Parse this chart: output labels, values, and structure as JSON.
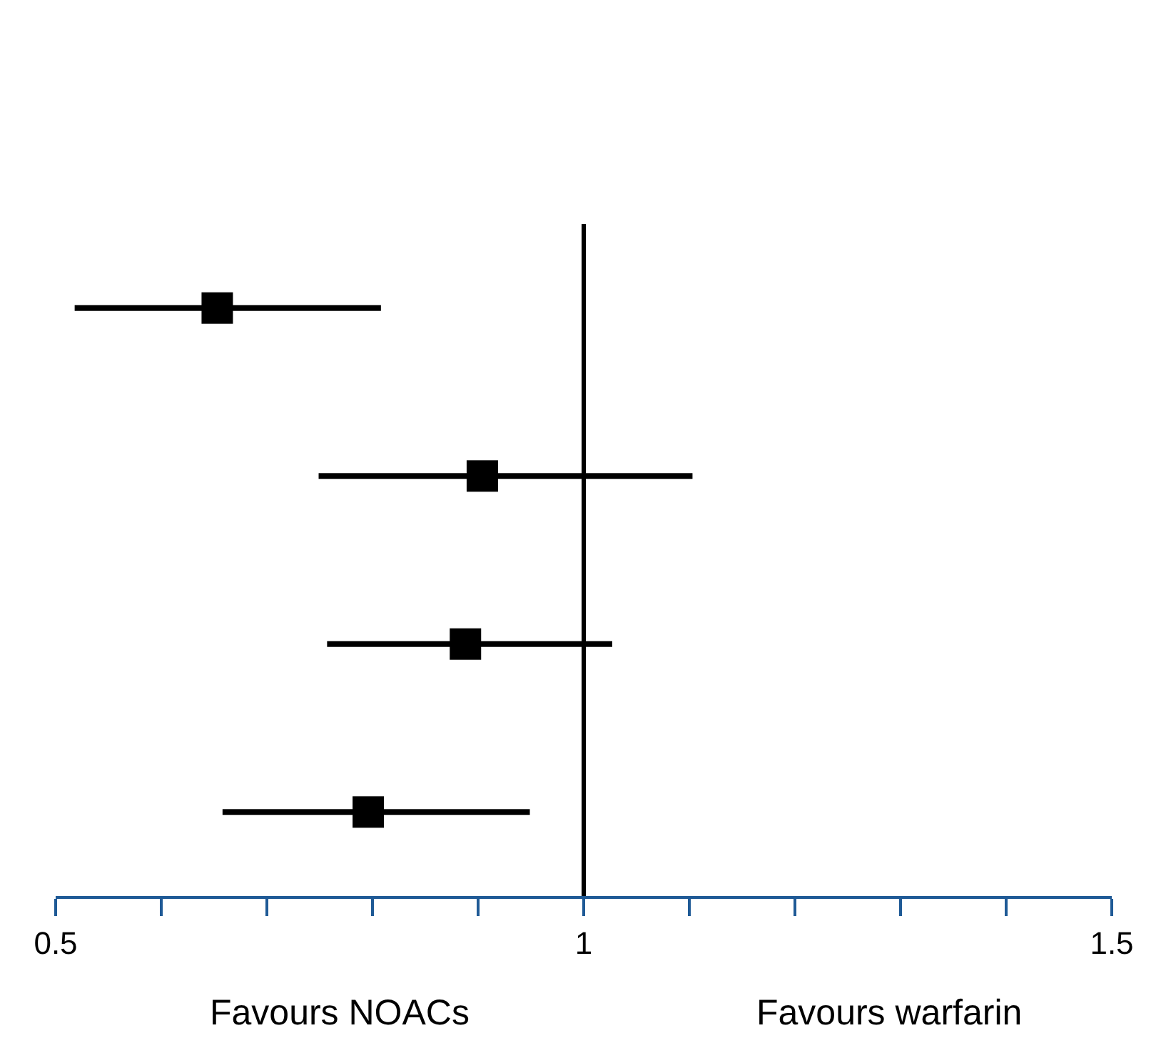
{
  "chart_data": {
    "type": "scatter",
    "orientation": "horizontal",
    "marker": "square",
    "grid": false,
    "tick_labels": "x",
    "categories": [
      null,
      null,
      null,
      null
    ],
    "series": [
      {
        "color": "#000000",
        "values": [
          0.653,
          0.904,
          0.888,
          0.796
        ],
        "errors": [
          [
            0.518,
            0.808
          ],
          [
            0.749,
            1.103
          ],
          [
            0.757,
            1.027
          ],
          [
            0.658,
            0.949
          ]
        ]
      }
    ],
    "xlim": [
      0.5,
      1.5
    ],
    "xticks": [
      0.5,
      {
        "value": 0.6,
        "label": null
      },
      {
        "value": 0.7,
        "label": null
      },
      {
        "value": 0.8,
        "label": null
      },
      {
        "value": 0.9,
        "label": null
      },
      1,
      {
        "value": 1.1,
        "label": null
      },
      {
        "value": 1.2,
        "label": null
      },
      {
        "value": 1.3,
        "label": null
      },
      {
        "value": 1.4,
        "label": null
      },
      1.5
    ],
    "ref_lines": [
      {
        "axis": "x",
        "value": 1,
        "color": "#000000"
      }
    ],
    "annotations": [
      "Favours NOACs",
      "Favours warfarin"
    ]
  }
}
